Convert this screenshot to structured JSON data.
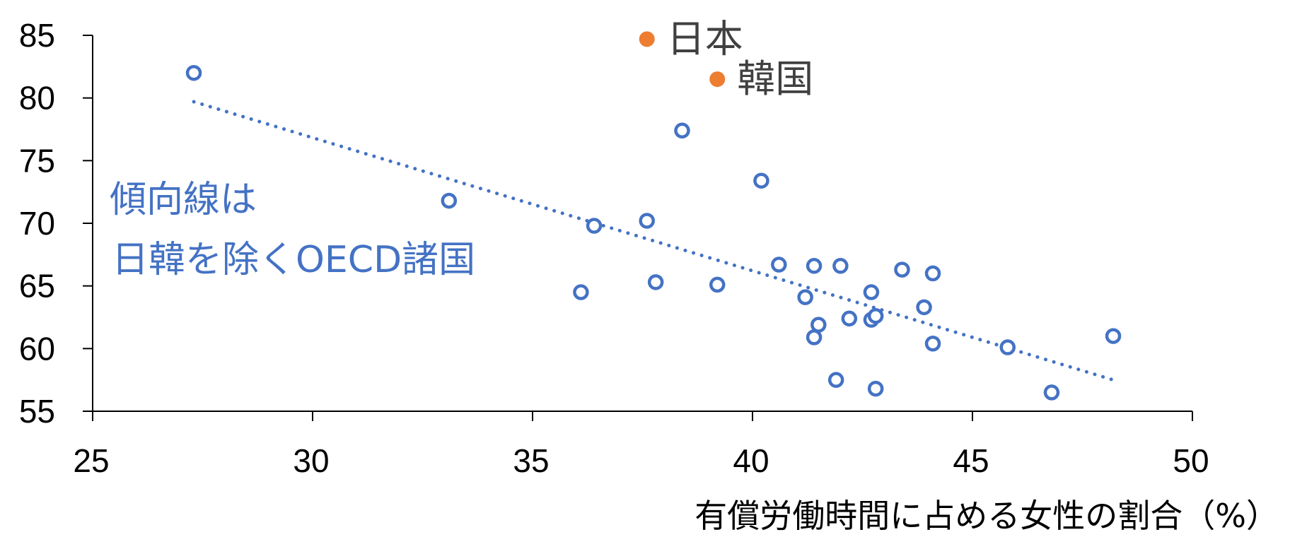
{
  "chart_data": {
    "type": "scatter",
    "title": "",
    "xlabel": "有償労働時間に占める女性の割合（%）",
    "ylabel": "",
    "xlim": [
      25,
      50
    ],
    "ylim": [
      55,
      85
    ],
    "x_ticks": [
      25,
      30,
      35,
      40,
      45,
      50
    ],
    "y_ticks": [
      55,
      60,
      65,
      70,
      75,
      80,
      85
    ],
    "grid": false,
    "legend": "none",
    "colors": {
      "oecd": "#4472C4",
      "highlight": "#ED7D31",
      "axis": "#000000"
    },
    "series": [
      {
        "marker": "open-circle",
        "points": [
          [
            27.3,
            82.0
          ],
          [
            33.1,
            71.8
          ],
          [
            36.1,
            64.5
          ],
          [
            36.4,
            69.8
          ],
          [
            37.6,
            70.2
          ],
          [
            37.8,
            65.3
          ],
          [
            38.4,
            77.4
          ],
          [
            39.2,
            65.1
          ],
          [
            40.2,
            73.4
          ],
          [
            40.6,
            66.7
          ],
          [
            41.2,
            64.1
          ],
          [
            41.4,
            66.6
          ],
          [
            41.4,
            60.9
          ],
          [
            41.5,
            61.9
          ],
          [
            41.9,
            57.5
          ],
          [
            42.0,
            66.6
          ],
          [
            42.2,
            62.4
          ],
          [
            42.7,
            64.5
          ],
          [
            42.7,
            62.3
          ],
          [
            42.8,
            62.6
          ],
          [
            42.8,
            56.8
          ],
          [
            43.4,
            66.3
          ],
          [
            43.9,
            63.3
          ],
          [
            44.1,
            66.0
          ],
          [
            44.1,
            60.4
          ],
          [
            45.8,
            60.1
          ],
          [
            46.8,
            56.5
          ],
          [
            48.2,
            61.0
          ]
        ]
      },
      {
        "marker": "filled-circle",
        "points": [
          {
            "x": 37.6,
            "y": 84.7,
            "label": "日本"
          },
          {
            "x": 39.2,
            "y": 81.5,
            "label": "韓国"
          }
        ]
      }
    ],
    "trendline": {
      "style": "dotted",
      "from": [
        27.3,
        79.7
      ],
      "to": [
        48.2,
        57.5
      ]
    },
    "annotation": {
      "lines": [
        "傾向線は",
        "日韓を除くOECD諸国"
      ]
    }
  }
}
